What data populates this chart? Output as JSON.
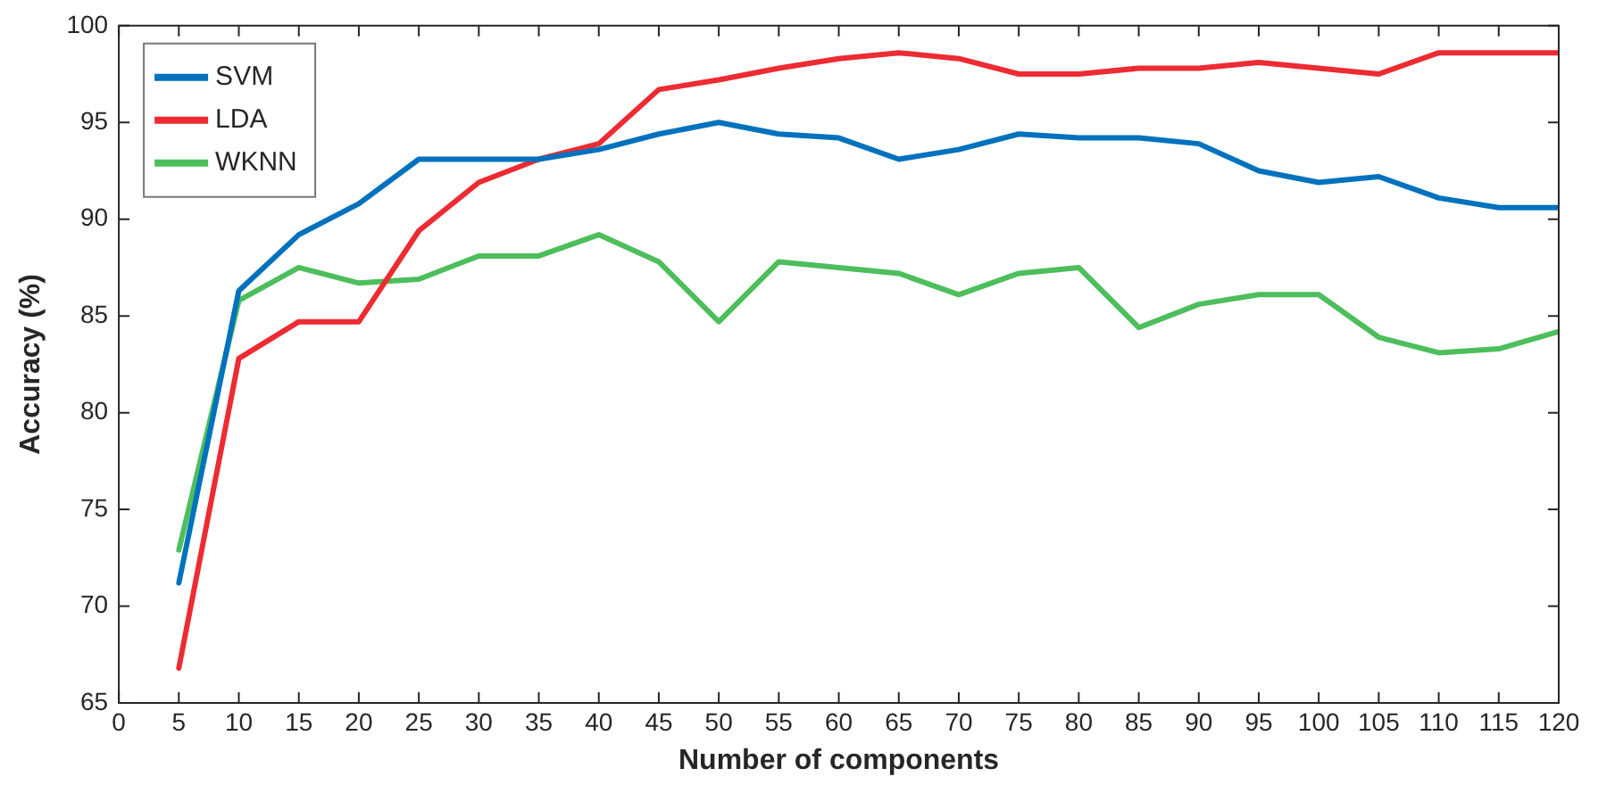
{
  "chart_data": {
    "type": "line",
    "xlabel": "Number of components",
    "ylabel": "Accuracy (%)",
    "x": [
      5,
      10,
      15,
      20,
      25,
      30,
      35,
      40,
      45,
      50,
      55,
      60,
      65,
      70,
      75,
      80,
      85,
      90,
      95,
      100,
      105,
      110,
      115,
      120
    ],
    "series": [
      {
        "name": "SVM",
        "color": "#0072bd",
        "values": [
          71.2,
          86.3,
          89.2,
          90.8,
          93.1,
          93.1,
          93.1,
          93.6,
          94.4,
          95.0,
          94.4,
          94.2,
          93.1,
          93.6,
          94.4,
          94.2,
          94.2,
          93.9,
          92.5,
          91.9,
          92.2,
          91.1,
          90.6,
          90.6
        ]
      },
      {
        "name": "LDA",
        "color": "#ed2b33",
        "values": [
          66.8,
          82.8,
          84.7,
          84.7,
          89.4,
          91.9,
          93.1,
          93.9,
          96.7,
          97.2,
          97.8,
          98.3,
          98.6,
          98.3,
          97.5,
          97.5,
          97.8,
          97.8,
          98.1,
          97.8,
          97.5,
          98.6,
          98.6,
          98.6
        ]
      },
      {
        "name": "WKNN",
        "color": "#4dbe5c",
        "values": [
          72.9,
          85.8,
          87.5,
          86.7,
          86.9,
          88.1,
          88.1,
          89.2,
          87.8,
          84.7,
          87.8,
          87.5,
          87.2,
          86.1,
          87.2,
          87.5,
          84.4,
          85.6,
          86.1,
          86.1,
          83.9,
          83.1,
          83.3,
          84.2
        ]
      }
    ],
    "xlim": [
      0,
      120
    ],
    "xticks": [
      0,
      5,
      10,
      15,
      20,
      25,
      30,
      35,
      40,
      45,
      50,
      55,
      60,
      65,
      70,
      75,
      80,
      85,
      90,
      95,
      100,
      105,
      110,
      115,
      120
    ],
    "ylim": [
      65,
      100
    ],
    "yticks": [
      65,
      70,
      75,
      80,
      85,
      90,
      95,
      100
    ],
    "grid": false,
    "legend": "top left",
    "marker": "none",
    "line_style": "solid"
  }
}
